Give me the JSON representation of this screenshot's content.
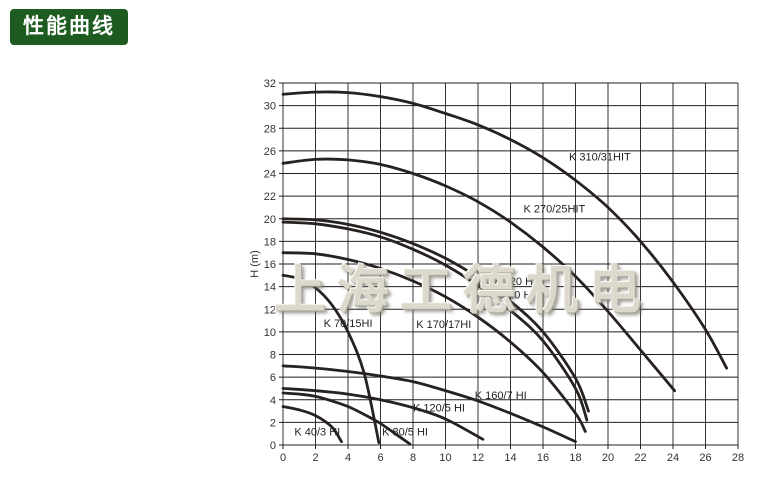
{
  "header": {
    "badge": "性能曲线"
  },
  "watermark": {
    "text": "上海工德机电"
  },
  "colors": {
    "badge_bg": "#1d5b20",
    "badge_text": "#ffffff",
    "grid": "#1f1f1f",
    "curve": "#272120",
    "tick_text": "#333333",
    "label_text": "#222222",
    "watermark_fill": "#dcd8cb"
  },
  "chart_data": {
    "type": "line",
    "title": "",
    "xlabel": "",
    "ylabel": "H (m)",
    "xlim": [
      0,
      28
    ],
    "ylim": [
      0,
      32
    ],
    "x_ticks": [
      0,
      2,
      4,
      6,
      8,
      10,
      12,
      14,
      16,
      18,
      20,
      22,
      24,
      26,
      28
    ],
    "y_ticks": [
      0,
      2,
      4,
      6,
      8,
      10,
      12,
      14,
      16,
      18,
      20,
      22,
      24,
      26,
      28,
      30,
      32
    ],
    "grid": true,
    "legend_position": "inline-labels",
    "series": [
      {
        "name": "K 310/31HIT",
        "points": [
          [
            0,
            31.0
          ],
          [
            2,
            31.2
          ],
          [
            4,
            31.15
          ],
          [
            6,
            30.8
          ],
          [
            8,
            30.2
          ],
          [
            10,
            29.3
          ],
          [
            12,
            28.3
          ],
          [
            14,
            27.0
          ],
          [
            16,
            25.4
          ],
          [
            18,
            23.4
          ],
          [
            20,
            21.0
          ],
          [
            22,
            18.0
          ],
          [
            24,
            14.4
          ],
          [
            26,
            10.2
          ],
          [
            27.3,
            6.8
          ]
        ],
        "label": {
          "text": "K 310/31HIT",
          "x": 17.6,
          "y": 25.5
        }
      },
      {
        "name": "K 270/25HIT",
        "points": [
          [
            0,
            24.9
          ],
          [
            2,
            25.25
          ],
          [
            4,
            25.2
          ],
          [
            6,
            24.8
          ],
          [
            8,
            24.0
          ],
          [
            10,
            22.9
          ],
          [
            12,
            21.5
          ],
          [
            14,
            19.7
          ],
          [
            16,
            17.5
          ],
          [
            18,
            14.9
          ],
          [
            20,
            11.8
          ],
          [
            22,
            8.4
          ],
          [
            24.1,
            4.8
          ]
        ],
        "label": {
          "text": "K 270/25HIT",
          "x": 14.8,
          "y": 20.9
        }
      },
      {
        "name": "K 180/20 HI",
        "points": [
          [
            0,
            20.0
          ],
          [
            2,
            19.9
          ],
          [
            4,
            19.5
          ],
          [
            6,
            18.8
          ],
          [
            8,
            17.8
          ],
          [
            10,
            16.5
          ],
          [
            12,
            14.8
          ],
          [
            14,
            12.7
          ],
          [
            16,
            10.0
          ],
          [
            18,
            5.9
          ],
          [
            18.8,
            3.0
          ]
        ],
        "label": {
          "text": "K 180/20 HI",
          "x": 12.0,
          "y": 14.5
        }
      },
      {
        "name": "K 180/20 HIT",
        "points": [
          [
            0,
            19.7
          ],
          [
            2,
            19.55
          ],
          [
            4,
            19.1
          ],
          [
            6,
            18.4
          ],
          [
            8,
            17.3
          ],
          [
            10,
            15.9
          ],
          [
            12,
            14.1
          ],
          [
            14,
            11.9
          ],
          [
            16,
            9.2
          ],
          [
            18,
            5.0
          ],
          [
            18.7,
            2.2
          ]
        ],
        "label": {
          "text": "K 180/20 HIT",
          "x": 11.9,
          "y": 13.3
        }
      },
      {
        "name": "K 170/17HI",
        "points": [
          [
            0,
            17.0
          ],
          [
            2,
            16.9
          ],
          [
            4,
            16.4
          ],
          [
            6,
            15.6
          ],
          [
            8,
            14.5
          ],
          [
            10,
            13.1
          ],
          [
            12,
            11.3
          ],
          [
            14,
            9.1
          ],
          [
            16,
            6.4
          ],
          [
            18,
            2.8
          ],
          [
            18.6,
            1.2
          ]
        ],
        "label": {
          "text": "K 170/17HI",
          "x": 8.2,
          "y": 10.7
        }
      },
      {
        "name": "K 70/15HI",
        "points": [
          [
            0,
            15.0
          ],
          [
            1,
            14.7
          ],
          [
            2,
            13.9
          ],
          [
            3,
            12.4
          ],
          [
            4,
            10.0
          ],
          [
            5,
            6.3
          ],
          [
            5.9,
            0.2
          ]
        ],
        "label": {
          "text": "K 70/15HI",
          "x": 2.5,
          "y": 10.8
        }
      },
      {
        "name": "K 160/7 HI",
        "points": [
          [
            0,
            7.0
          ],
          [
            2,
            6.8
          ],
          [
            4,
            6.5
          ],
          [
            6,
            6.1
          ],
          [
            8,
            5.6
          ],
          [
            10,
            4.8
          ],
          [
            12,
            3.9
          ],
          [
            14,
            2.8
          ],
          [
            16,
            1.6
          ],
          [
            18,
            0.3
          ]
        ],
        "label": {
          "text": "K 160/7 HI",
          "x": 11.8,
          "y": 4.4
        }
      },
      {
        "name": "K 120/5 HI",
        "points": [
          [
            0,
            5.0
          ],
          [
            2,
            4.8
          ],
          [
            4,
            4.5
          ],
          [
            6,
            4.0
          ],
          [
            8,
            3.3
          ],
          [
            10,
            2.3
          ],
          [
            12.3,
            0.5
          ]
        ],
        "label": {
          "text": "K 120/5 HI",
          "x": 8.0,
          "y": 3.3
        }
      },
      {
        "name": "K 80/5 HI",
        "points": [
          [
            0,
            4.6
          ],
          [
            1,
            4.5
          ],
          [
            2,
            4.3
          ],
          [
            3,
            3.9
          ],
          [
            4,
            3.4
          ],
          [
            5,
            2.7
          ],
          [
            6,
            1.9
          ],
          [
            7,
            0.9
          ],
          [
            7.8,
            0.1
          ]
        ],
        "label": {
          "text": "K 80/5 HI",
          "x": 6.1,
          "y": 1.2
        }
      },
      {
        "name": "K 40/3 HI",
        "points": [
          [
            0,
            3.4
          ],
          [
            1,
            3.1
          ],
          [
            2,
            2.6
          ],
          [
            3,
            1.6
          ],
          [
            3.6,
            0.3
          ]
        ],
        "label": {
          "text": "K 40/3 HI",
          "x": 0.7,
          "y": 1.2
        }
      }
    ]
  }
}
